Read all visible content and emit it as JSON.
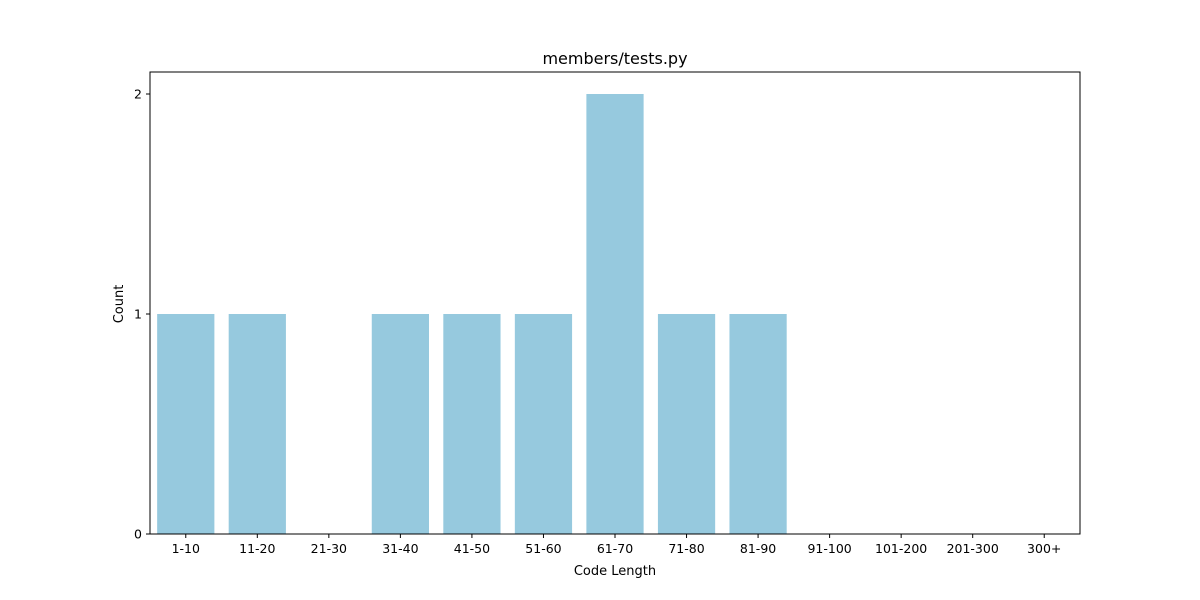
{
  "chart_data": {
    "type": "bar",
    "title": "members/tests.py",
    "xlabel": "Code Length",
    "ylabel": "Count",
    "categories": [
      "1-10",
      "11-20",
      "21-30",
      "31-40",
      "41-50",
      "51-60",
      "61-70",
      "71-80",
      "81-90",
      "91-100",
      "101-200",
      "201-300",
      "300+"
    ],
    "values": [
      1,
      1,
      0,
      1,
      1,
      1,
      2,
      1,
      1,
      0,
      0,
      0,
      0
    ],
    "ylim": [
      0,
      2.1
    ],
    "yticks": [
      0,
      1,
      2
    ],
    "grid": false,
    "bar_color": "#96c9de"
  }
}
